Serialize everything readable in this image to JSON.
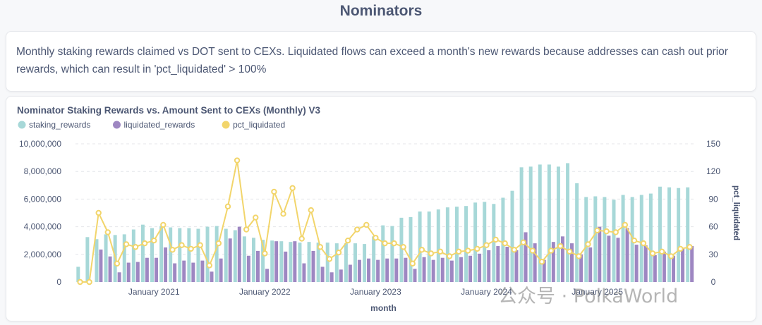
{
  "page": {
    "title": "Nominators",
    "description": "Monthly staking rewards claimed vs DOT sent to CEXs. Liquidated flows can exceed a month's new rewards because addresses can cash out prior rewards, which can result in 'pct_liquidated' > 100%",
    "watermark": "公众号 · PolkaWorld"
  },
  "chart_data": {
    "type": "bar",
    "title": "Nominator Staking Rewards vs. Amount Sent to CEXs (Monthly) V3",
    "xlabel": "month",
    "ylabel": "",
    "y2label": "pct_liquidated",
    "ylim": [
      0,
      10000000
    ],
    "y2lim": [
      0,
      150
    ],
    "yticks": [
      "0",
      "2,000,000",
      "4,000,000",
      "6,000,000",
      "8,000,000",
      "10,000,000"
    ],
    "y2ticks": [
      "0",
      "30",
      "60",
      "90",
      "120",
      "150"
    ],
    "xticks": [
      {
        "label": "January 2021",
        "index": 8
      },
      {
        "label": "January 2022",
        "index": 20
      },
      {
        "label": "January 2023",
        "index": 32
      },
      {
        "label": "January 2024",
        "index": 44
      },
      {
        "label": "January 2025",
        "index": 56
      }
    ],
    "colors": {
      "staking_rewards": "#a7d8d8",
      "liquidated_rewards": "#9e87c2",
      "pct_liquidated": "#f2d56b"
    },
    "categories": [
      "2020-05",
      "2020-06",
      "2020-07",
      "2020-08",
      "2020-09",
      "2020-10",
      "2020-11",
      "2020-12",
      "2021-01",
      "2021-02",
      "2021-03",
      "2021-04",
      "2021-05",
      "2021-06",
      "2021-07",
      "2021-08",
      "2021-09",
      "2021-10",
      "2021-11",
      "2021-12",
      "2022-01",
      "2022-02",
      "2022-03",
      "2022-04",
      "2022-05",
      "2022-06",
      "2022-07",
      "2022-08",
      "2022-09",
      "2022-10",
      "2022-11",
      "2022-12",
      "2023-01",
      "2023-02",
      "2023-03",
      "2023-04",
      "2023-05",
      "2023-06",
      "2023-07",
      "2023-08",
      "2023-09",
      "2023-10",
      "2023-11",
      "2023-12",
      "2024-01",
      "2024-02",
      "2024-03",
      "2024-04",
      "2024-05",
      "2024-06",
      "2024-07",
      "2024-08",
      "2024-09",
      "2024-10",
      "2024-11",
      "2024-12",
      "2025-01",
      "2025-02",
      "2025-03",
      "2025-04",
      "2025-05",
      "2025-06",
      "2025-07",
      "2025-08",
      "2025-09",
      "2025-10",
      "2025-11"
    ],
    "series": [
      {
        "name": "staking_rewards",
        "kind": "bar",
        "axis": "left",
        "values": [
          1100000,
          3250000,
          3100000,
          3450000,
          3400000,
          3450000,
          3800000,
          4150000,
          3900000,
          4050000,
          3950000,
          3900000,
          3900000,
          3850000,
          4000000,
          4050000,
          3850000,
          3750000,
          3300000,
          3200000,
          3050000,
          3000000,
          2950000,
          2900000,
          2850000,
          2900000,
          2850000,
          2850000,
          2800000,
          2800000,
          2800000,
          2750000,
          3300000,
          4100000,
          4050000,
          4650000,
          4700000,
          5100000,
          5100000,
          5250000,
          5400000,
          5450000,
          5500000,
          5750000,
          5800000,
          5650000,
          6100000,
          6600000,
          8300000,
          8350000,
          8500000,
          8500000,
          8350000,
          8600000,
          7150000,
          6150000,
          6200000,
          6150000,
          5950000,
          6300000,
          6150000,
          6300000,
          6400000,
          6900000,
          6850000,
          6800000,
          6850000
        ]
      },
      {
        "name": "liquidated_rewards",
        "kind": "bar",
        "axis": "left",
        "values": [
          0,
          0,
          2350000,
          1850000,
          700000,
          1400000,
          1450000,
          1750000,
          1750000,
          2500000,
          1350000,
          1550000,
          1400000,
          1550000,
          750000,
          1700000,
          3150000,
          4000000,
          1900000,
          2250000,
          950000,
          2950000,
          2200000,
          2950000,
          1350000,
          2250000,
          1100000,
          700000,
          900000,
          1250000,
          1600000,
          1700000,
          1600000,
          1700000,
          1700000,
          1750000,
          950000,
          1800000,
          1600000,
          1750000,
          1550000,
          1800000,
          1900000,
          2050000,
          2300000,
          2600000,
          2550000,
          2300000,
          3600000,
          2800000,
          1600000,
          2900000,
          3300000,
          2800000,
          2000000,
          2500000,
          4000000,
          3350000,
          3200000,
          3900000,
          2700000,
          2650000,
          1950000,
          2200000,
          1900000,
          2450000,
          2600000
        ]
      },
      {
        "name": "pct_liquidated",
        "kind": "line",
        "axis": "right",
        "values": [
          0,
          0,
          75,
          54,
          20,
          41,
          38,
          42,
          45,
          62,
          35,
          40,
          36,
          40,
          18,
          42,
          82,
          132,
          57,
          70,
          31,
          98,
          74,
          102,
          47,
          78,
          38,
          25,
          32,
          45,
          57,
          62,
          48,
          42,
          42,
          38,
          20,
          35,
          31,
          33,
          28,
          33,
          34,
          36,
          40,
          46,
          42,
          35,
          43,
          34,
          22,
          34,
          39,
          33,
          28,
          41,
          56,
          55,
          54,
          62,
          45,
          42,
          31,
          33,
          28,
          36,
          38
        ]
      }
    ]
  }
}
